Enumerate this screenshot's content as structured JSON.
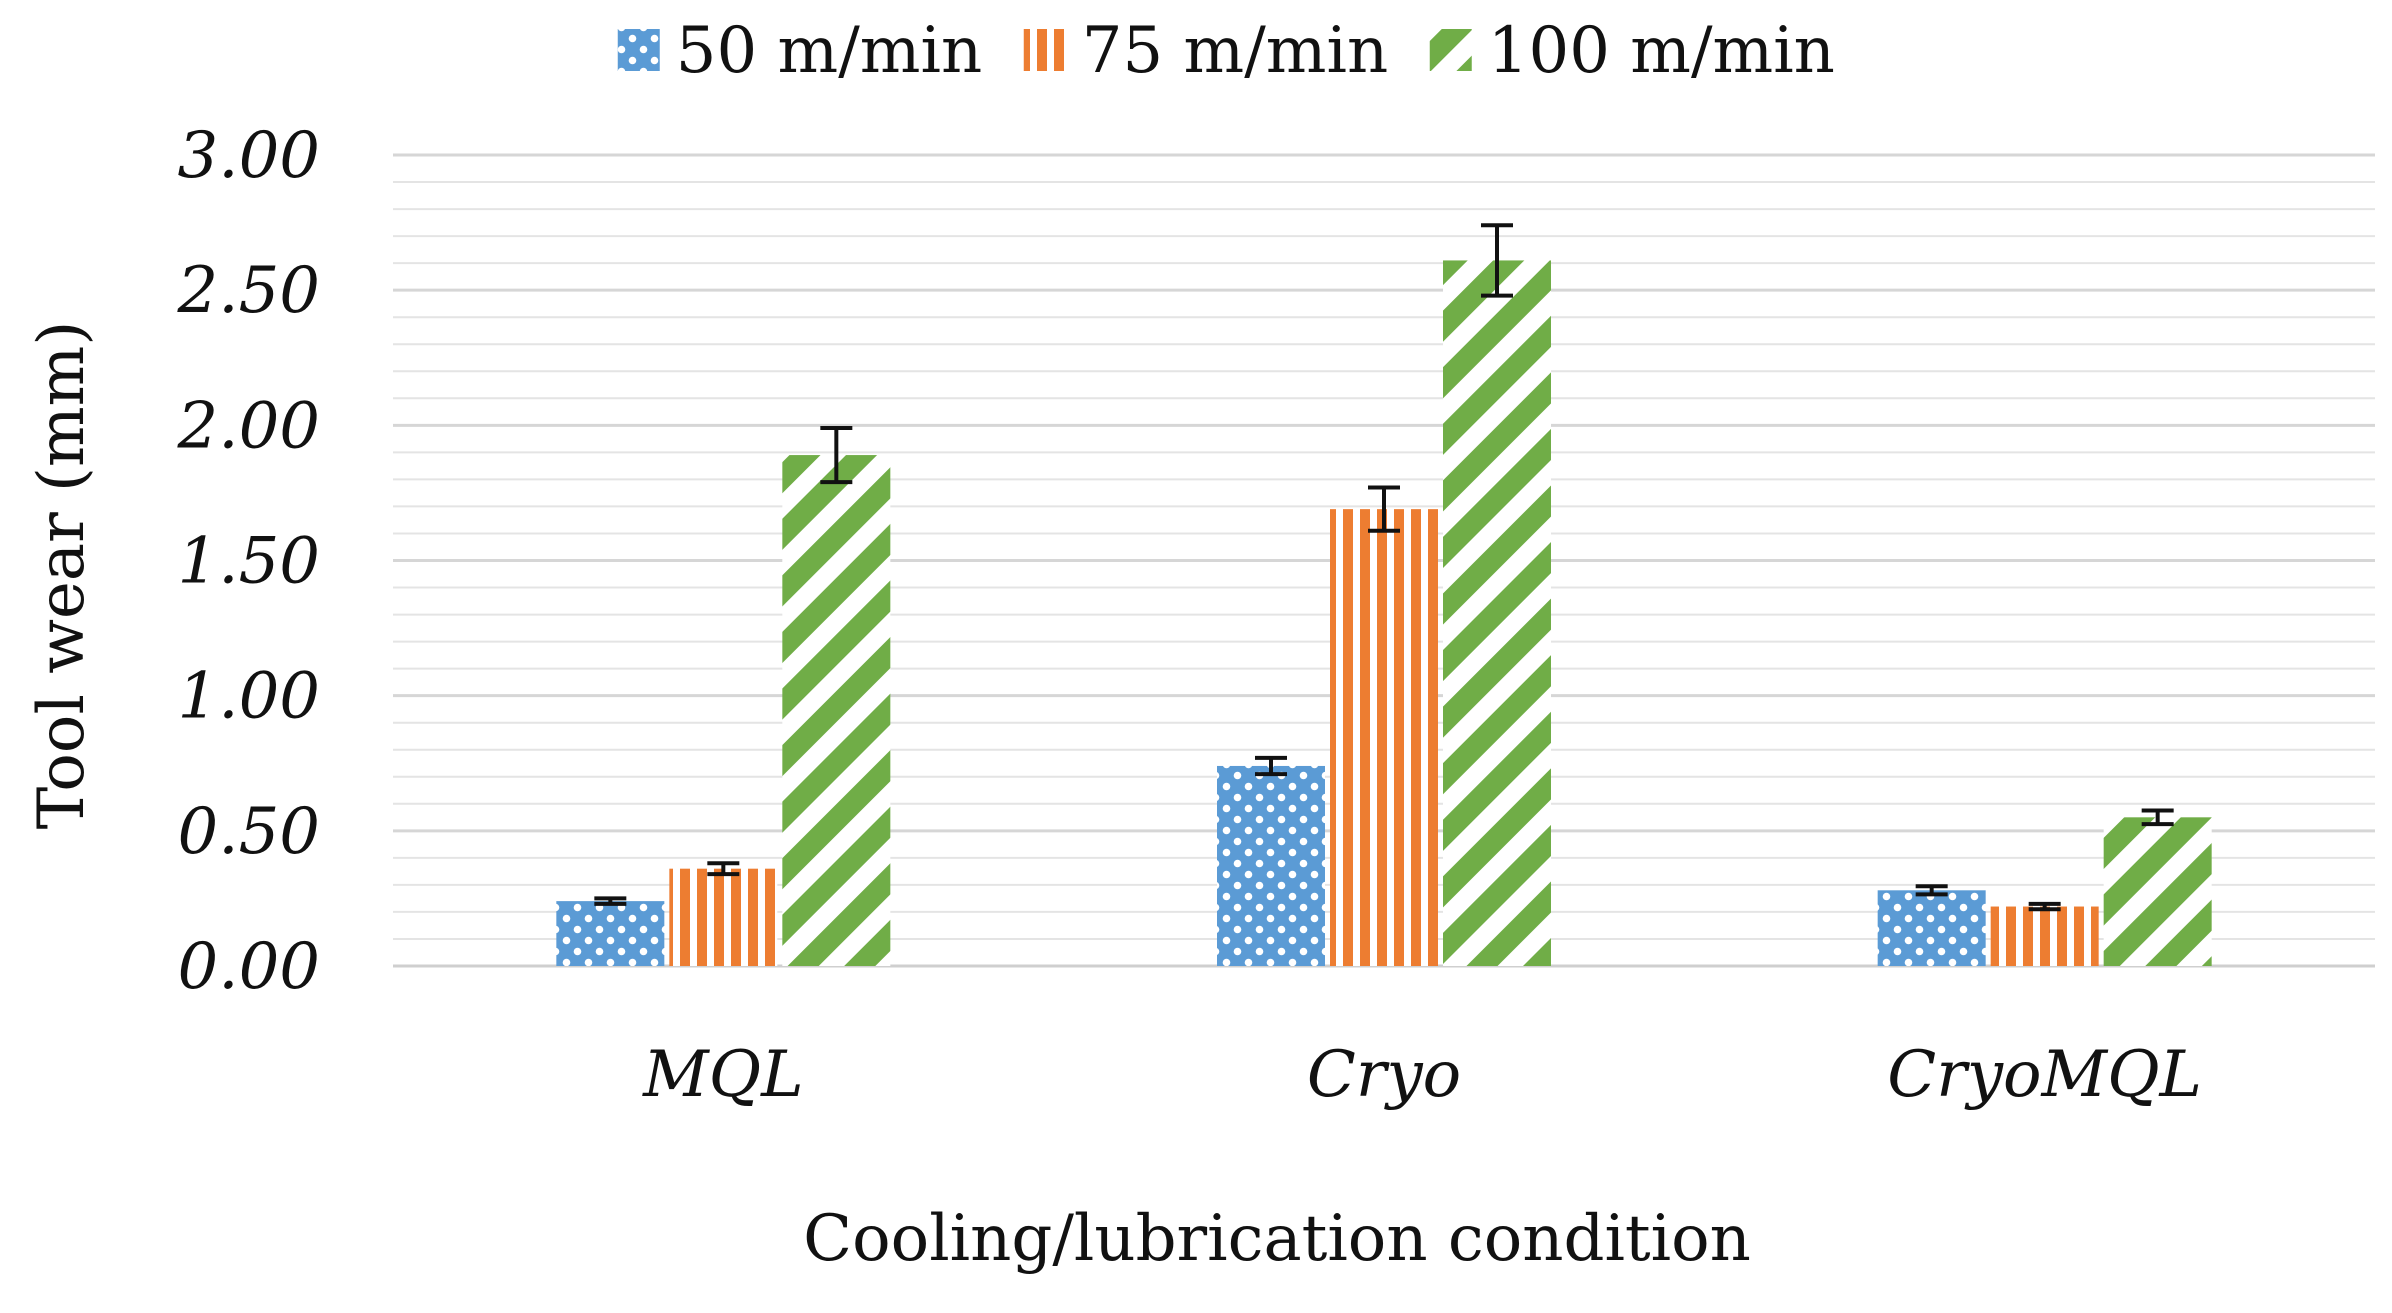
{
  "chart_data": {
    "type": "bar",
    "categories": [
      "MQL",
      "Cryo",
      "CryoMQL"
    ],
    "series": [
      {
        "name": "50 m/min",
        "color": "#5b9bd5",
        "pattern": "crosshatch",
        "values": [
          0.24,
          0.74,
          0.28
        ],
        "errors": [
          0.01,
          0.03,
          0.015
        ]
      },
      {
        "name": "75 m/min",
        "color": "#ed7d31",
        "pattern": "vertical-stripes",
        "values": [
          0.36,
          1.69,
          0.22
        ],
        "errors": [
          0.02,
          0.08,
          0.01
        ]
      },
      {
        "name": "100 m/min",
        "color": "#70ad47",
        "pattern": "diagonal-stripes",
        "values": [
          1.89,
          2.61,
          0.55
        ],
        "errors": [
          0.1,
          0.13,
          0.025
        ]
      }
    ],
    "ytick_labels": [
      "0.00",
      "0.50",
      "1.00",
      "1.50",
      "2.00",
      "2.50",
      "3.00"
    ],
    "ylim": [
      0,
      3.0
    ],
    "ylabel": "Tool wear (mm)",
    "xlabel": "Cooling/lubrication condition",
    "grid": true,
    "legend_position": "top-center"
  }
}
